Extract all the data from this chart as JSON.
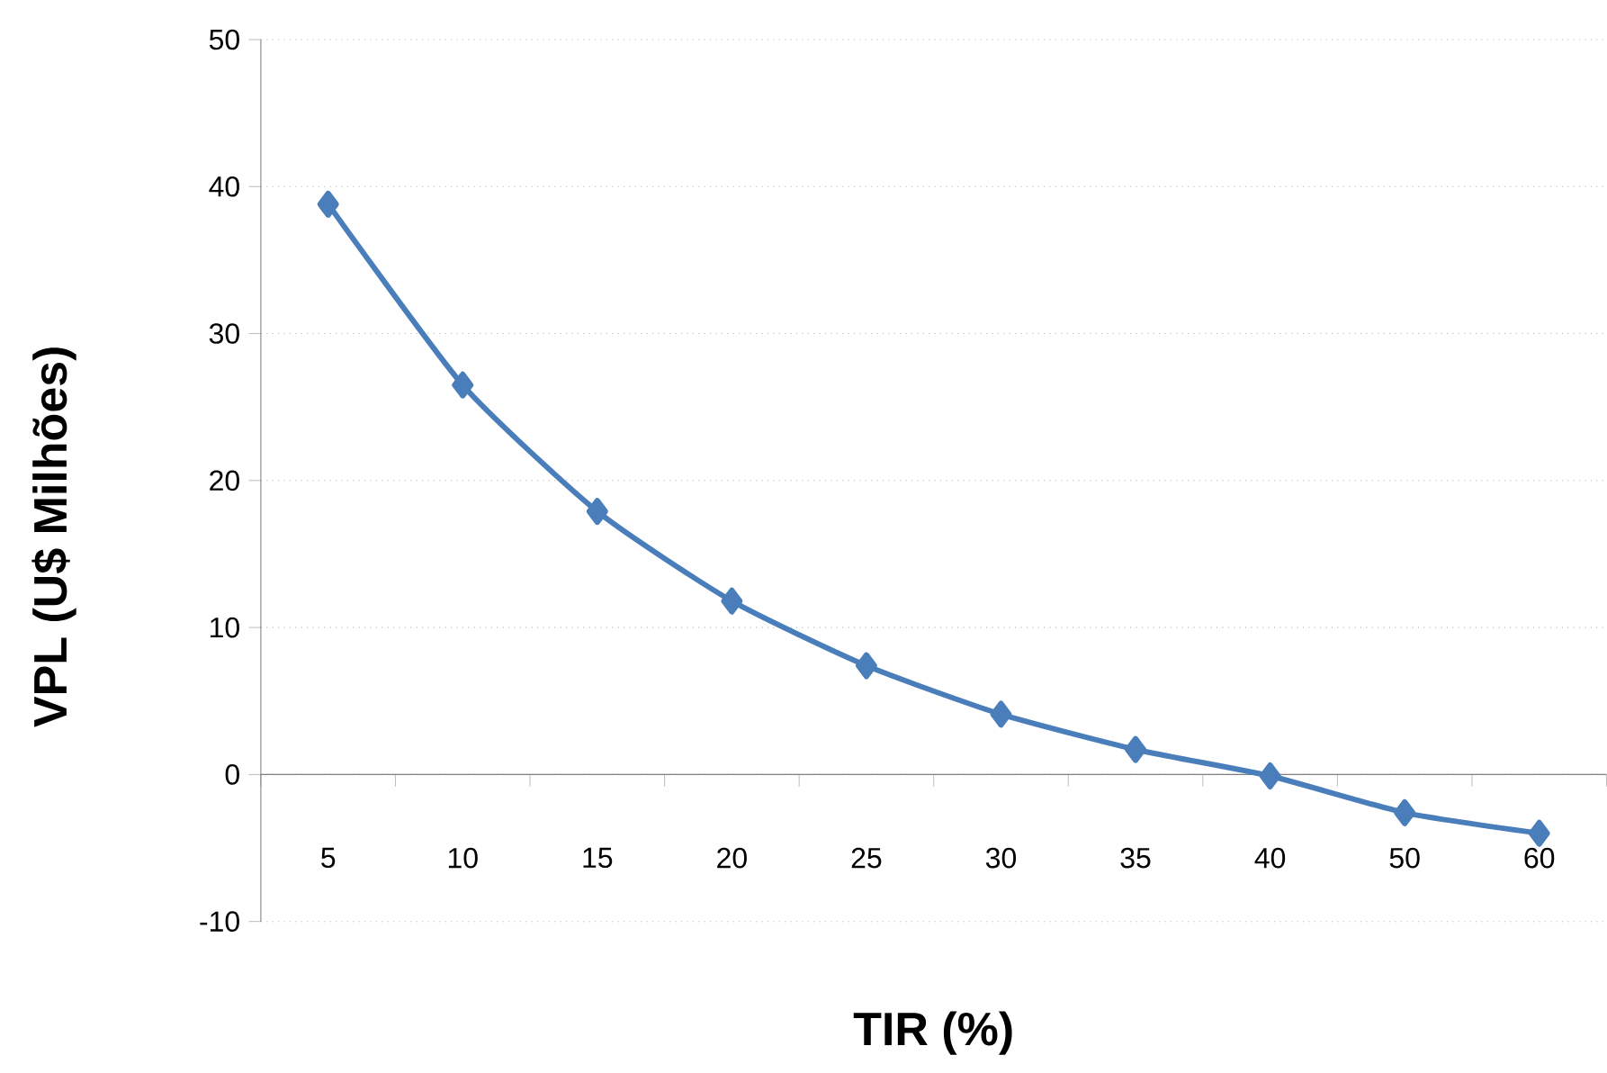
{
  "chart_data": {
    "type": "line",
    "xlabel": "TIR (%)",
    "ylabel": "VPL (U$ Milhões)",
    "categories": [
      "5",
      "10",
      "15",
      "20",
      "25",
      "30",
      "35",
      "40",
      "50",
      "60"
    ],
    "series": [
      {
        "color": "#4a7ebb",
        "values": [
          38.8,
          26.5,
          17.9,
          11.8,
          7.4,
          4.1,
          1.7,
          -0.1,
          -2.6,
          -4.0
        ]
      }
    ],
    "ylim": [
      -10,
      50
    ],
    "yticks": [
      -10,
      0,
      10,
      20,
      30,
      40,
      50
    ],
    "grid": "y",
    "marker": "diamond",
    "line_style": "solid"
  }
}
